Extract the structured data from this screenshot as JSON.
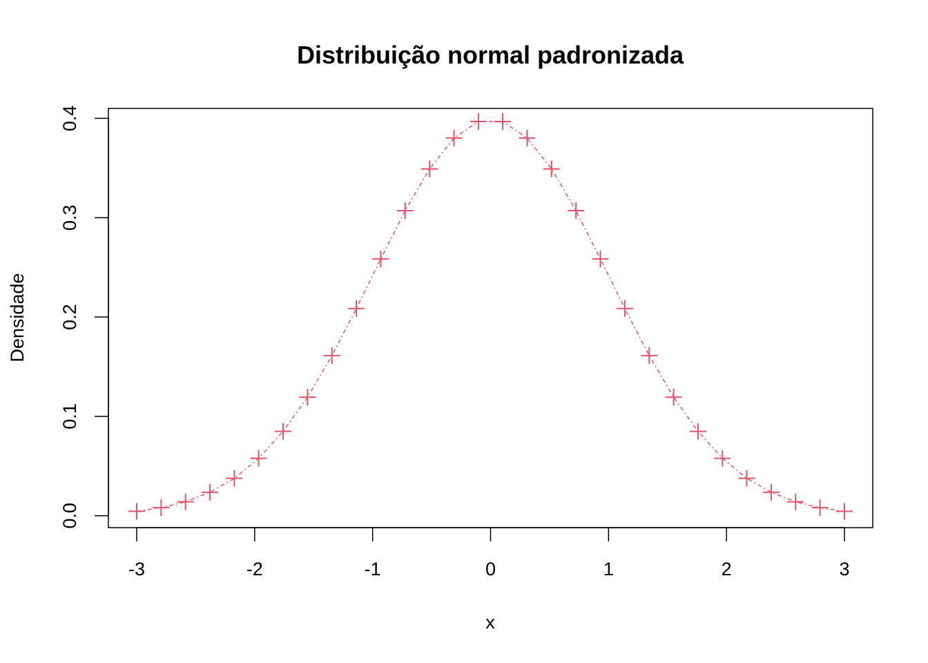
{
  "chart_data": {
    "type": "line",
    "title": "Distribuição normal padronizada",
    "xlabel": "x",
    "ylabel": "Densidade",
    "xlim": [
      -3.24,
      3.24
    ],
    "ylim": [
      -0.012,
      0.41
    ],
    "xticks": [
      -3,
      -2,
      -1,
      0,
      1,
      2,
      3
    ],
    "xtick_labels": [
      "-3",
      "-2",
      "-1",
      "0",
      "1",
      "2",
      "3"
    ],
    "yticks": [
      0.0,
      0.1,
      0.2,
      0.3,
      0.4
    ],
    "ytick_labels": [
      "0.0",
      "0.1",
      "0.2",
      "0.3",
      "0.4"
    ],
    "grid": false,
    "line_style": "dotdash",
    "marker": "plus",
    "color": "#DF536B",
    "series": [
      {
        "x": [
          -3.0,
          -2.793,
          -2.586,
          -2.379,
          -2.172,
          -1.966,
          -1.759,
          -1.552,
          -1.345,
          -1.138,
          -0.931,
          -0.724,
          -0.517,
          -0.31,
          -0.103,
          0.103,
          0.31,
          0.517,
          0.724,
          0.931,
          1.138,
          1.345,
          1.552,
          1.759,
          1.966,
          2.172,
          2.379,
          2.586,
          2.793,
          3.0
        ],
        "y": [
          0.0044,
          0.0081,
          0.014,
          0.0236,
          0.0376,
          0.0578,
          0.0849,
          0.1193,
          0.1612,
          0.2086,
          0.2585,
          0.3071,
          0.3491,
          0.3802,
          0.3968,
          0.3968,
          0.3802,
          0.3491,
          0.3071,
          0.2585,
          0.2086,
          0.1612,
          0.1193,
          0.0849,
          0.0578,
          0.0376,
          0.0236,
          0.014,
          0.0081,
          0.0044
        ]
      }
    ]
  }
}
